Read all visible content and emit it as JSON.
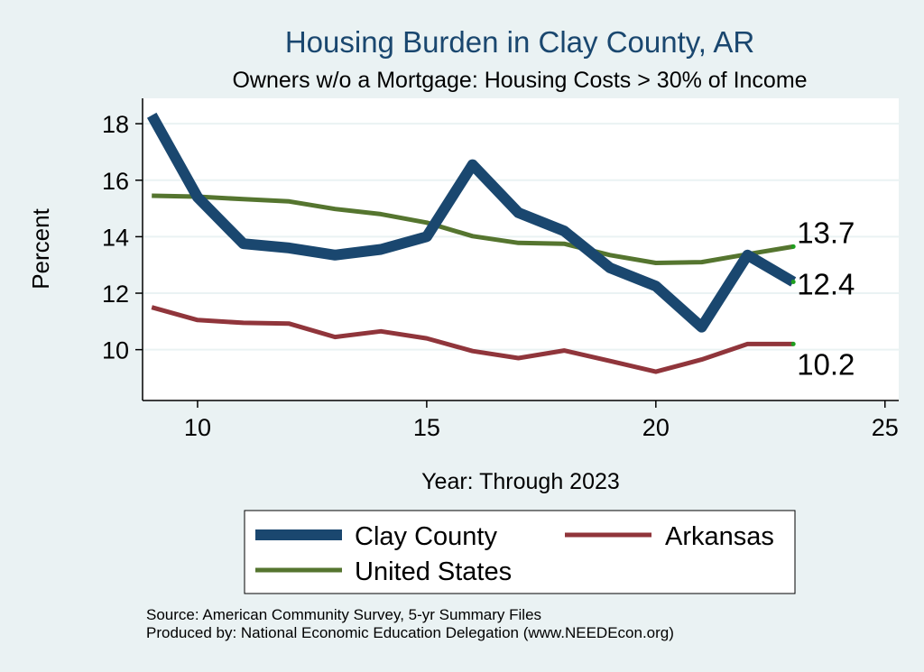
{
  "chart_data": {
    "type": "line",
    "title": "Housing Burden in Clay County, AR",
    "subtitle": "Owners w/o a Mortgage: Housing Costs > 30% of Income",
    "xlabel": "Year: Through 2023",
    "ylabel": "Percent",
    "xlim": [
      8.8,
      25.3
    ],
    "ylim": [
      8.2,
      18.9
    ],
    "xticks": [
      10,
      15,
      20,
      25
    ],
    "yticks": [
      10,
      12,
      14,
      16,
      18
    ],
    "grid": true,
    "x": [
      9,
      10,
      11,
      12,
      13,
      14,
      15,
      16,
      17,
      18,
      19,
      20,
      21,
      22,
      23
    ],
    "series": [
      {
        "name": "Clay County",
        "color": "#1a476f",
        "values": [
          18.3,
          15.4,
          13.75,
          13.6,
          13.35,
          13.55,
          14.0,
          16.55,
          14.85,
          14.2,
          12.9,
          12.25,
          10.8,
          13.35,
          12.4
        ],
        "end_label": "12.4"
      },
      {
        "name": "Arkansas",
        "color": "#90353b",
        "values": [
          11.5,
          11.05,
          10.95,
          10.92,
          10.45,
          10.65,
          10.4,
          9.95,
          9.7,
          9.97,
          9.6,
          9.22,
          9.65,
          10.2,
          10.2
        ],
        "end_label": "10.2"
      },
      {
        "name": "United States",
        "color": "#55752f",
        "values": [
          15.45,
          15.42,
          15.33,
          15.25,
          14.98,
          14.8,
          14.5,
          14.02,
          13.78,
          13.75,
          13.35,
          13.07,
          13.1,
          13.38,
          13.65
        ],
        "end_label": "13.7"
      }
    ],
    "legend": {
      "placement": "bottom",
      "entries": [
        "Clay County",
        "Arkansas",
        "United States"
      ]
    },
    "notes": [
      "Source: American Community Survey, 5-yr Summary Files",
      "Produced by: National Economic Education Delegation (www.NEEDEcon.org)"
    ]
  }
}
